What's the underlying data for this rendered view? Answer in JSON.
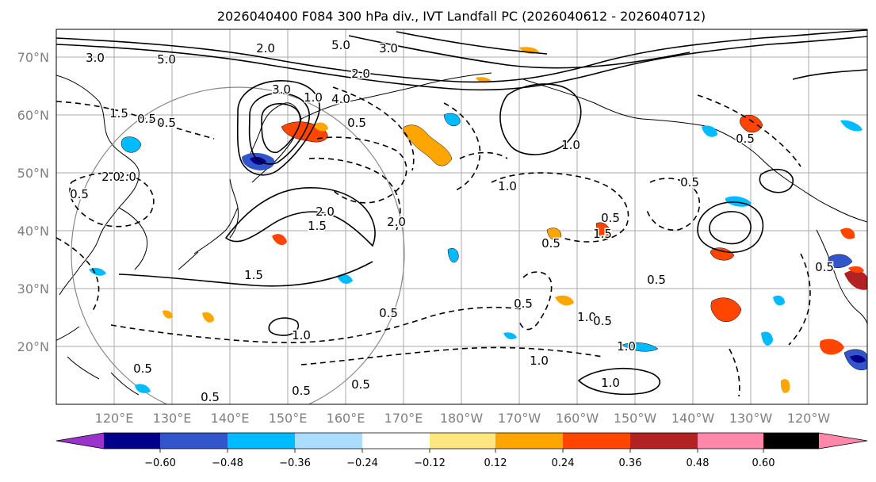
{
  "title": "2026040400 F084 300 hPa div., IVT Landfall PC (2026040612 - 2026040712)",
  "map": {
    "lat_labels": [
      "70°N",
      "60°N",
      "50°N",
      "40°N",
      "30°N",
      "20°N"
    ],
    "lon_labels": [
      "120°E",
      "130°E",
      "140°E",
      "150°E",
      "160°E",
      "170°E",
      "180°W",
      "170°W",
      "160°W",
      "150°W",
      "140°W",
      "130°W",
      "120°W"
    ],
    "colors": {
      "frame": "#000000",
      "grid": "#aaaaaa",
      "axis_label": "#808080",
      "contour": "#000000",
      "circle": "#888888"
    },
    "contour_labels": [
      "3.0",
      "5.0",
      "2.0",
      "0.5",
      "5.0",
      "3.0",
      "2.0",
      "1.0",
      "4.0",
      "3.0",
      "1.5",
      "0.5",
      "2.0",
      "0.5",
      "2.0",
      "0.5",
      "2.0",
      "1.5",
      "1.0",
      "0.5",
      "1.5",
      "0.5",
      "0.5",
      "0.5",
      "0.5",
      "0.5",
      "1.0",
      "1.0",
      "1.0",
      "1.0",
      "0.5",
      "0.5",
      "1.0",
      "0.5",
      "0.5",
      "0.5",
      "1.0",
      "2.0",
      "1.5",
      "0.5",
      "0.5"
    ]
  },
  "colorbar": {
    "ticks": [
      "−0.60",
      "−0.48",
      "−0.36",
      "−0.24",
      "−0.12",
      "0.12",
      "0.24",
      "0.36",
      "0.48",
      "0.60"
    ],
    "colors": [
      "#9933cc",
      "#000088",
      "#3355cc",
      "#00bbff",
      "#aaddff",
      "#ffffff",
      "#ffe680",
      "#ffa500",
      "#ff4500",
      "#b22222",
      "#ff88aa"
    ]
  }
}
